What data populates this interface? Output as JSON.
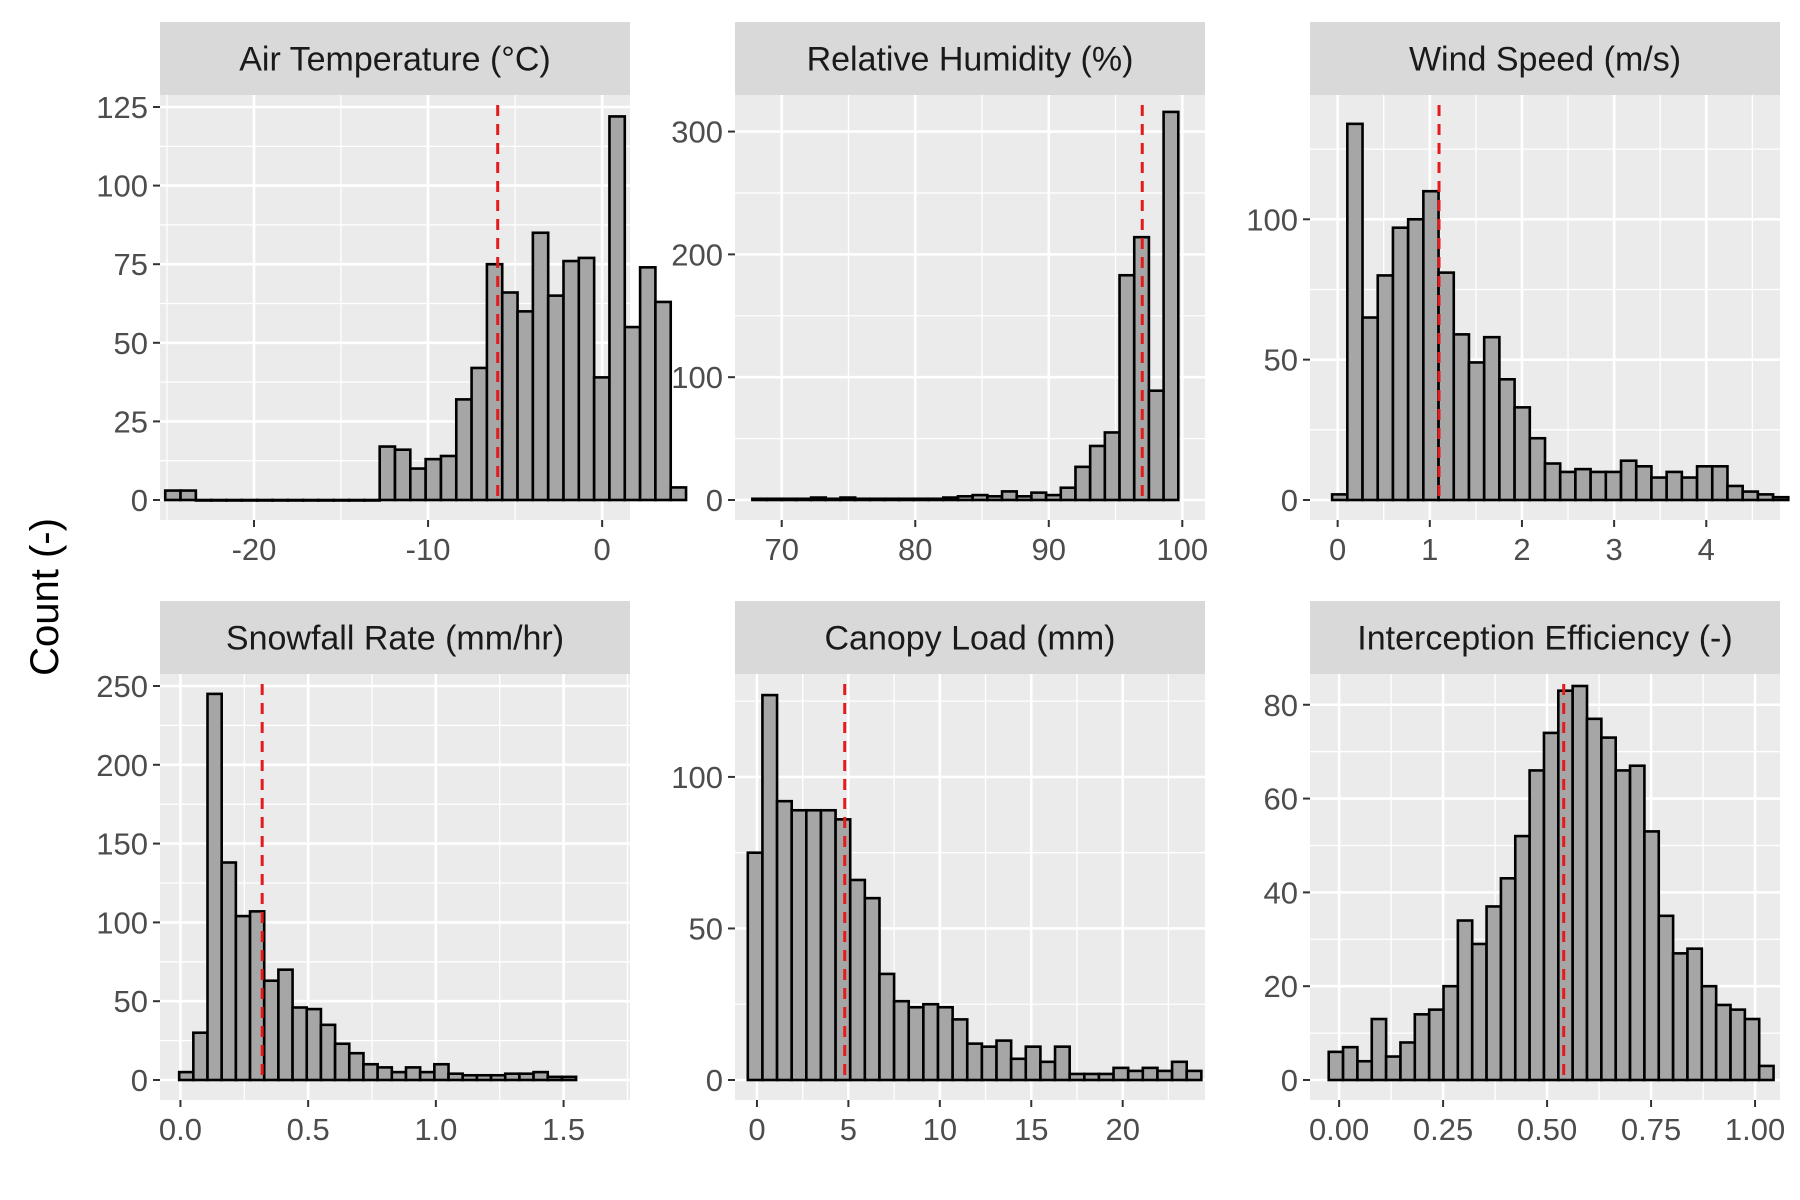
{
  "figure": {
    "ylabel": "Count (-)"
  },
  "colors": {
    "panel_bg": "#ebebeb",
    "strip_bg": "#d9d9d9",
    "grid": "#ffffff",
    "bar_fill": "#a6a6a6",
    "bar_edge": "#000000",
    "median_line": "#e41a1c"
  },
  "chart_data": [
    {
      "type": "bar",
      "title": "Air Temperature (°C)",
      "xlim": [
        -25.4,
        1.6
      ],
      "ylim": [
        0,
        125
      ],
      "xticks": [
        -20,
        -10,
        0
      ],
      "xtick_labels": [
        "-20",
        "-10",
        "0"
      ],
      "yticks": [
        0,
        25,
        50,
        75,
        100,
        125
      ],
      "ytick_labels": [
        "0",
        "25",
        "50",
        "75",
        "100",
        "125"
      ],
      "bin_start": -25.1,
      "bin_width": 0.88,
      "counts": [
        3,
        3,
        0,
        0,
        0,
        0,
        0,
        0,
        0,
        0,
        0,
        0,
        0,
        0,
        17,
        16,
        10,
        13,
        14,
        32,
        42,
        75,
        66,
        60,
        85,
        65,
        76,
        77,
        39,
        122,
        55,
        74,
        63,
        4
      ],
      "median_line": -6
    },
    {
      "type": "bar",
      "title": "Relative Humidity (%)",
      "xlim": [
        66.5,
        101.7
      ],
      "ylim": [
        0,
        320
      ],
      "xticks": [
        70,
        80,
        90,
        100
      ],
      "xtick_labels": [
        "70",
        "80",
        "90",
        "100"
      ],
      "yticks": [
        0,
        100,
        200,
        300
      ],
      "ytick_labels": [
        "0",
        "100",
        "200",
        "300"
      ],
      "bin_start": 67.8,
      "bin_width": 1.1,
      "counts": [
        1,
        1,
        1,
        1,
        2,
        1,
        2,
        1,
        1,
        1,
        1,
        1,
        1,
        2,
        3,
        4,
        3,
        7,
        3,
        6,
        4,
        10,
        27,
        44,
        55,
        183,
        214,
        89,
        316
      ],
      "median_line": 97
    },
    {
      "type": "bar",
      "title": "Wind Speed (m/s)",
      "xlim": [
        -0.3,
        4.8
      ],
      "ylim": [
        0,
        140
      ],
      "xticks": [
        0,
        1,
        2,
        3,
        4
      ],
      "xtick_labels": [
        "0",
        "1",
        "2",
        "3",
        "4"
      ],
      "yticks": [
        0,
        50,
        100
      ],
      "ytick_labels": [
        "0",
        "50",
        "100"
      ],
      "bin_start": -0.06,
      "bin_width": 0.165,
      "counts": [
        2,
        134,
        65,
        80,
        97,
        100,
        110,
        81,
        59,
        49,
        58,
        43,
        33,
        22,
        13,
        10,
        11,
        10,
        10,
        14,
        12,
        8,
        10,
        8,
        12,
        12,
        5,
        3,
        2,
        1
      ],
      "median_line": 1.1
    },
    {
      "type": "bar",
      "title": "Snowfall Rate (mm/hr)",
      "xlim": [
        -0.08,
        1.76
      ],
      "ylim": [
        0,
        250
      ],
      "xticks": [
        0.0,
        0.5,
        1.0,
        1.5
      ],
      "xtick_labels": [
        "0.0",
        "0.5",
        "1.0",
        "1.5"
      ],
      "yticks": [
        0,
        50,
        100,
        150,
        200,
        250
      ],
      "ytick_labels": [
        "0",
        "50",
        "100",
        "150",
        "200",
        "250"
      ],
      "bin_start": -0.005,
      "bin_width": 0.0555,
      "counts": [
        5,
        30,
        245,
        138,
        104,
        107,
        63,
        70,
        46,
        45,
        35,
        23,
        17,
        10,
        8,
        5,
        8,
        5,
        10,
        4,
        3,
        3,
        3,
        4,
        4,
        5,
        2,
        2
      ],
      "median_line": 0.32
    },
    {
      "type": "bar",
      "title": "Canopy Load (mm)",
      "xlim": [
        -1.2,
        24.5
      ],
      "ylim": [
        0,
        130
      ],
      "xticks": [
        0,
        5,
        10,
        15,
        20
      ],
      "xtick_labels": [
        "0",
        "5",
        "10",
        "15",
        "20"
      ],
      "yticks": [
        0,
        50,
        100
      ],
      "ytick_labels": [
        "0",
        "50",
        "100"
      ],
      "bin_start": -0.5,
      "bin_width": 0.8,
      "counts": [
        75,
        127,
        92,
        89,
        89,
        89,
        86,
        66,
        60,
        35,
        26,
        24,
        25,
        24,
        20,
        12,
        11,
        13,
        7,
        11,
        6,
        11,
        2,
        2,
        2,
        4,
        3,
        4,
        3,
        6,
        3
      ],
      "median_line": 4.8
    },
    {
      "type": "bar",
      "title": "Interception Efficiency (-)",
      "xlim": [
        -0.07,
        1.06
      ],
      "ylim": [
        0,
        84
      ],
      "xticks": [
        0.0,
        0.25,
        0.5,
        0.75,
        1.0
      ],
      "xtick_labels": [
        "0.00",
        "0.25",
        "0.50",
        "0.75",
        "1.00"
      ],
      "yticks": [
        0,
        20,
        40,
        60,
        80
      ],
      "ytick_labels": [
        "0",
        "20",
        "40",
        "60",
        "80"
      ],
      "bin_start": -0.025,
      "bin_width": 0.0345,
      "counts": [
        6,
        7,
        4,
        13,
        5,
        8,
        14,
        15,
        20,
        34,
        29,
        37,
        43,
        52,
        66,
        74,
        83,
        84,
        77,
        73,
        66,
        67,
        53,
        35,
        27,
        28,
        20,
        16,
        15,
        13,
        3
      ],
      "median_line": 0.54
    }
  ]
}
